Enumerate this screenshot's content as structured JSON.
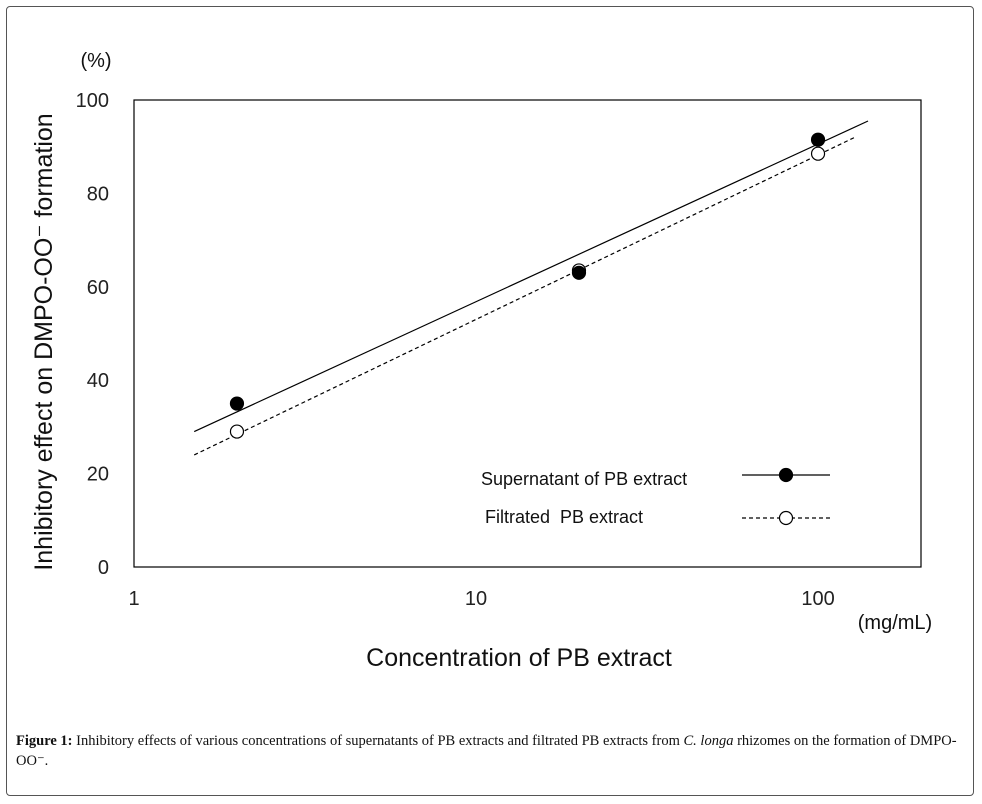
{
  "chart_data": {
    "type": "scatter",
    "title": "",
    "xlabel": "Concentration of PB extract",
    "x_unit": "(mg/mL)",
    "ylabel": "Inhibitory effect on DMPO-OO⁻ formation",
    "y_unit": "(%)",
    "x_scale": "log",
    "xlim": [
      1,
      200
    ],
    "ylim": [
      0,
      100
    ],
    "x_ticks": [
      1,
      10,
      100
    ],
    "x_tick_labels": [
      "1",
      "10",
      "100"
    ],
    "y_ticks": [
      0,
      20,
      40,
      60,
      80,
      100
    ],
    "y_tick_labels": [
      "0",
      "20",
      "40",
      "60",
      "80",
      "100"
    ],
    "grid": false,
    "legend_position": "bottom-right",
    "series": [
      {
        "name": "Supernatant of PB extract",
        "marker": "filled-circle",
        "line_style": "solid",
        "color": "#000000",
        "x": [
          2,
          20,
          100
        ],
        "y": [
          35,
          63,
          91.5
        ],
        "trendline": {
          "x": [
            1.5,
            140
          ],
          "y": [
            29,
            95.5
          ]
        }
      },
      {
        "name": "Filtrated  PB extract",
        "marker": "open-circle",
        "line_style": "dashed",
        "color": "#000000",
        "x": [
          2,
          20,
          100
        ],
        "y": [
          29,
          63.5,
          88.5
        ],
        "trendline": {
          "x": [
            1.5,
            128
          ],
          "y": [
            24,
            92
          ]
        }
      }
    ]
  },
  "caption": {
    "label": "Figure 1:",
    "text_before": " Inhibitory effects of various concentrations of supernatants of PB extracts and filtrated PB extracts from ",
    "species": "C. longa",
    "text_after": " rhizomes on the formation of DMPO-OO⁻."
  }
}
